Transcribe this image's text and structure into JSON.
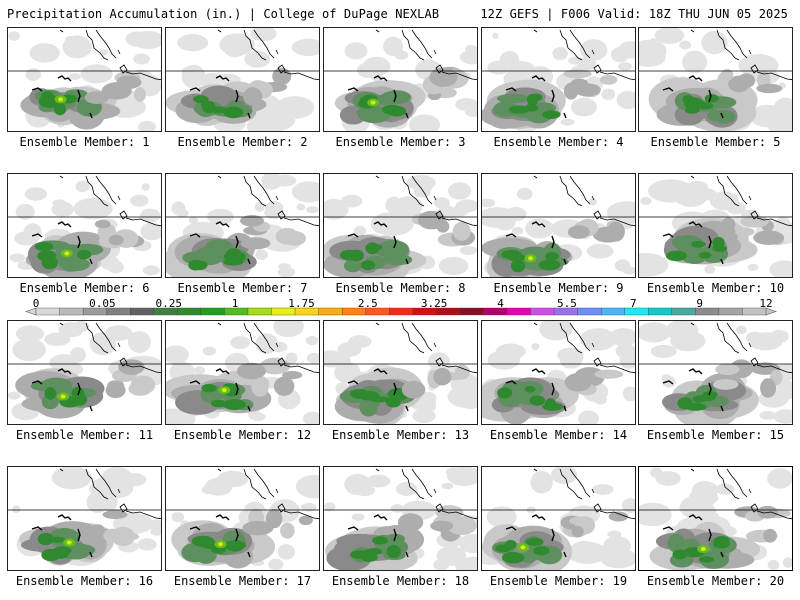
{
  "header": {
    "left": "Precipitation Accumulation (in.) | College of DuPage NEXLAB",
    "right": "12Z GEFS | F006 Valid: 18Z THU JUN 05 2025"
  },
  "chart_data": {
    "type": "heatmap",
    "title": "Precipitation Accumulation (in.)",
    "units": "in.",
    "source": "College of DuPage NEXLAB",
    "model": "12Z GEFS",
    "forecast_hour": "F006",
    "valid": "18Z THU JUN 05 2025",
    "colorbar": {
      "tick_labels": [
        "0",
        "0.05",
        "0.25",
        "1",
        "1.75",
        "2.5",
        "3.25",
        "4",
        "5.5",
        "7",
        "9",
        "12"
      ],
      "colors": [
        "#d7d7d7",
        "#b9b9b9",
        "#9b9b9b",
        "#808080",
        "#626262",
        "#3f7f3f",
        "#2e8b2e",
        "#1ea01e",
        "#52be1c",
        "#a4de1a",
        "#e8ee1a",
        "#ffd21c",
        "#ffaa1a",
        "#ff8019",
        "#ff5a14",
        "#f52a14",
        "#d40f0f",
        "#b00d18",
        "#8c0c28",
        "#b4006e",
        "#e600b4",
        "#d24bf0",
        "#9b6ef5",
        "#6e8cff",
        "#46b4ff",
        "#1ee6f5",
        "#14c8c8",
        "#46aaa0",
        "#8c8c8c",
        "#a5a5a5",
        "#c3c3c3"
      ]
    },
    "panels": [
      {
        "member": 1,
        "label": "Ensemble Member: 1",
        "max_category": "1"
      },
      {
        "member": 2,
        "label": "Ensemble Member: 2",
        "max_category": "0.25"
      },
      {
        "member": 3,
        "label": "Ensemble Member: 3",
        "max_category": "1"
      },
      {
        "member": 4,
        "label": "Ensemble Member: 4",
        "max_category": "0.25"
      },
      {
        "member": 5,
        "label": "Ensemble Member: 5",
        "max_category": "0.25"
      },
      {
        "member": 6,
        "label": "Ensemble Member: 6",
        "max_category": "1"
      },
      {
        "member": 7,
        "label": "Ensemble Member: 7",
        "max_category": "0.25"
      },
      {
        "member": 8,
        "label": "Ensemble Member: 8",
        "max_category": "0.25"
      },
      {
        "member": 9,
        "label": "Ensemble Member: 9",
        "max_category": "1"
      },
      {
        "member": 10,
        "label": "Ensemble Member: 10",
        "max_category": "0.25"
      },
      {
        "member": 11,
        "label": "Ensemble Member: 11",
        "max_category": "1"
      },
      {
        "member": 12,
        "label": "Ensemble Member: 12",
        "max_category": "1"
      },
      {
        "member": 13,
        "label": "Ensemble Member: 13",
        "max_category": "0.25"
      },
      {
        "member": 14,
        "label": "Ensemble Member: 14",
        "max_category": "0.25"
      },
      {
        "member": 15,
        "label": "Ensemble Member: 15",
        "max_category": "0.25"
      },
      {
        "member": 16,
        "label": "Ensemble Member: 16",
        "max_category": "1"
      },
      {
        "member": 17,
        "label": "Ensemble Member: 17",
        "max_category": "1"
      },
      {
        "member": 18,
        "label": "Ensemble Member: 18",
        "max_category": "0.25"
      },
      {
        "member": 19,
        "label": "Ensemble Member: 19",
        "max_category": "1"
      },
      {
        "member": 20,
        "label": "Ensemble Member: 20",
        "max_category": "1"
      }
    ]
  }
}
